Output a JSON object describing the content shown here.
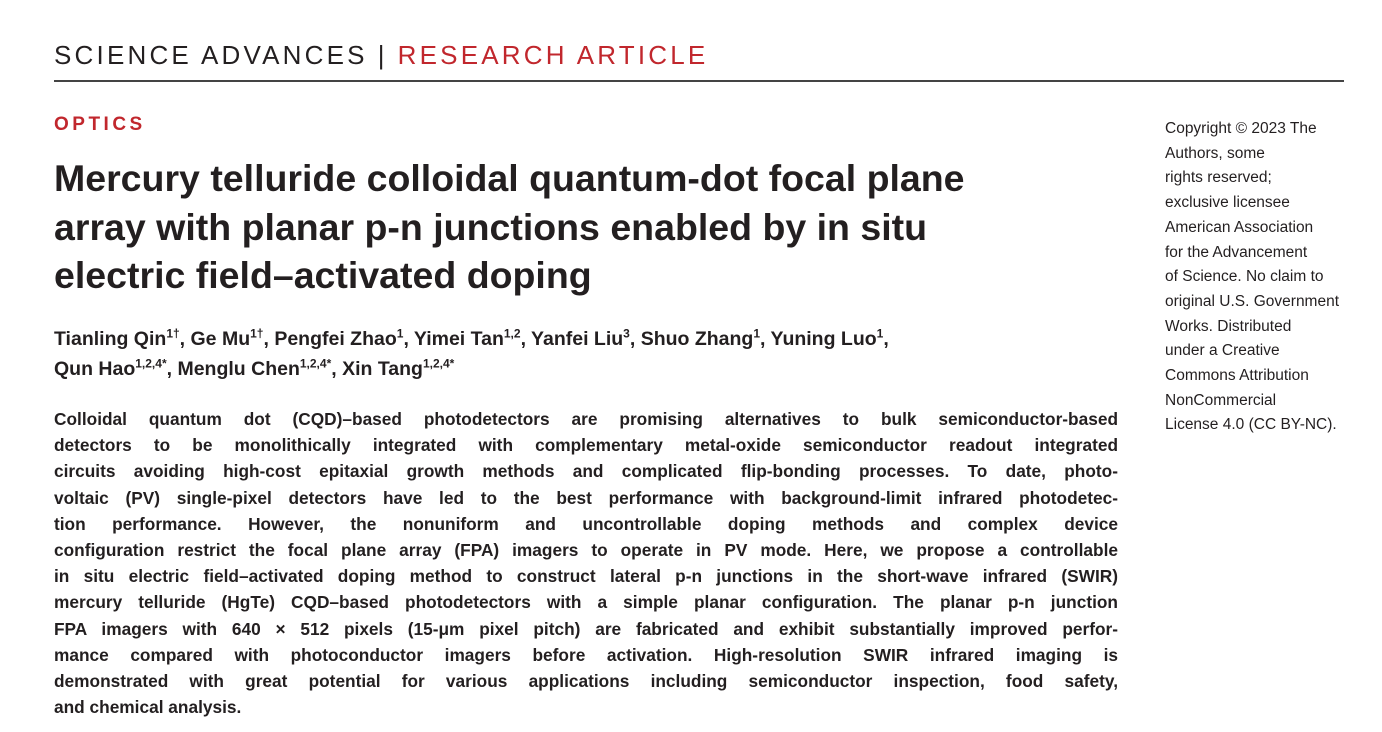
{
  "header": {
    "journal": "SCIENCE ADVANCES",
    "separator": "|",
    "article_type": "RESEARCH ARTICLE"
  },
  "section": "OPTICS",
  "title_lines": [
    "Mercury telluride colloidal quantum-dot focal plane",
    "array with planar p-n junctions enabled by in situ",
    "electric field–activated doping"
  ],
  "authors": [
    {
      "name": "Tianling Qin",
      "aff": "1†",
      "sep": ", "
    },
    {
      "name": "Ge Mu",
      "aff": "1†",
      "sep": ", "
    },
    {
      "name": "Pengfei Zhao",
      "aff": "1",
      "sep": ", "
    },
    {
      "name": "Yimei Tan",
      "aff": "1,2",
      "sep": ", "
    },
    {
      "name": "Yanfei Liu",
      "aff": "3",
      "sep": ", "
    },
    {
      "name": "Shuo Zhang",
      "aff": "1",
      "sep": ", "
    },
    {
      "name": "Yuning Luo",
      "aff": "1",
      "sep": ","
    },
    {
      "name": "Qun Hao",
      "aff": "1,2,4*",
      "sep": ", "
    },
    {
      "name": "Menglu Chen",
      "aff": "1,2,4*",
      "sep": ", "
    },
    {
      "name": "Xin Tang",
      "aff": "1,2,4*",
      "sep": ""
    }
  ],
  "abstract_lines": [
    "Colloidal quantum dot (CQD)–based photodetectors are promising alternatives to bulk semiconductor-based",
    "detectors to be monolithically integrated with complementary metal-oxide semiconductor readout integrated",
    "circuits avoiding high-cost epitaxial growth methods and complicated flip-bonding processes. To date, photo-",
    "voltaic (PV) single-pixel detectors have led to the best performance with background-limit infrared photodetec-",
    "tion performance. However, the nonuniform and uncontrollable doping methods and complex device",
    "configuration restrict the focal plane array (FPA) imagers to operate in PV mode. Here, we propose a controllable",
    "in situ electric field–activated doping method to construct lateral p-n junctions in the short-wave infrared (SWIR)",
    "mercury telluride (HgTe) CQD–based photodetectors with a simple planar configuration. The planar p-n junction",
    "FPA imagers with 640 × 512 pixels (15-μm pixel pitch) are fabricated and exhibit substantially improved perfor-",
    "mance compared with photoconductor imagers before activation. High-resolution SWIR infrared imaging is",
    "demonstrated with great potential for various applications including semiconductor inspection, food safety,",
    "and chemical analysis."
  ],
  "copyright_lines": [
    "Copyright © 2023 The",
    "Authors, some",
    "rights reserved;",
    "exclusive licensee",
    "American Association",
    "for the Advancement",
    "of Science. No claim to",
    "original U.S. Government",
    "Works. Distributed",
    "under a Creative",
    "Commons Attribution",
    "NonCommercial",
    "License 4.0 (CC BY-NC)."
  ],
  "colors": {
    "accent_red": "#c1272d",
    "text": "#231f20"
  }
}
